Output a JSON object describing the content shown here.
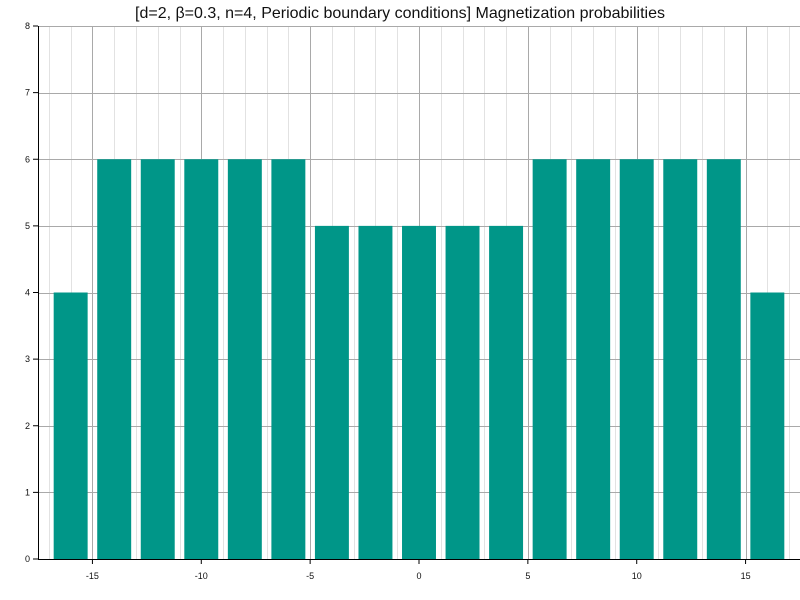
{
  "chart_data": {
    "type": "bar",
    "title": "[d=2, β=0.3, n=4, Periodic boundary conditions] Magnetization probabilities",
    "xlabel": "",
    "ylabel": "",
    "x": [
      -16,
      -14,
      -12,
      -10,
      -8,
      -6,
      -4,
      -2,
      0,
      2,
      4,
      6,
      8,
      10,
      12,
      14,
      16
    ],
    "values": [
      4,
      6,
      6,
      6,
      6,
      6,
      5,
      5,
      5,
      5,
      5,
      6,
      6,
      6,
      6,
      6,
      4
    ],
    "xlim": [
      -17.5,
      17.5
    ],
    "ylim": [
      0,
      8
    ],
    "x_ticks": [
      -15,
      -10,
      -5,
      0,
      5,
      10,
      15
    ],
    "y_ticks": [
      0,
      1,
      2,
      3,
      4,
      5,
      6,
      7,
      8
    ],
    "grid": true,
    "legend": "none",
    "bar_color": "#009688"
  }
}
